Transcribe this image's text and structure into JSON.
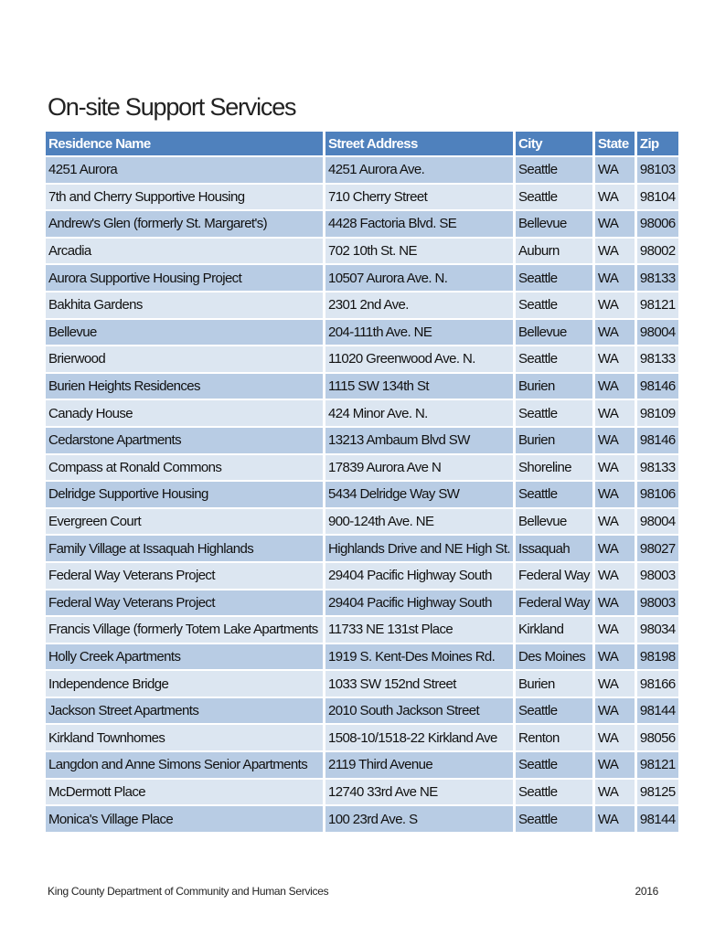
{
  "title": "On-site Support Services",
  "headers": [
    "Residence Name",
    "Street Address",
    "City",
    "State",
    "Zip"
  ],
  "rows": [
    [
      "4251 Aurora",
      "4251 Aurora Ave.",
      "Seattle",
      "WA",
      "98103"
    ],
    [
      "7th and Cherry Supportive Housing",
      "710 Cherry Street",
      "Seattle",
      "WA",
      "98104"
    ],
    [
      "Andrew's Glen (formerly St. Margaret's)",
      "4428 Factoria Blvd. SE",
      "Bellevue",
      "WA",
      "98006"
    ],
    [
      "Arcadia",
      "702 10th St. NE",
      "Auburn",
      "WA",
      "98002"
    ],
    [
      "Aurora Supportive Housing Project",
      "10507 Aurora Ave. N.",
      "Seattle",
      "WA",
      "98133"
    ],
    [
      "Bakhita Gardens",
      "2301 2nd Ave.",
      "Seattle",
      "WA",
      "98121"
    ],
    [
      "Bellevue",
      "204-111th Ave. NE",
      "Bellevue",
      "WA",
      "98004"
    ],
    [
      "Brierwood",
      "11020 Greenwood Ave. N.",
      "Seattle",
      "WA",
      "98133"
    ],
    [
      "Burien Heights Residences",
      "1115 SW 134th St",
      "Burien",
      "WA",
      "98146"
    ],
    [
      "Canady House",
      "424 Minor Ave. N.",
      "Seattle",
      "WA",
      "98109"
    ],
    [
      "Cedarstone Apartments",
      "13213 Ambaum Blvd SW",
      "Burien",
      "WA",
      "98146"
    ],
    [
      "Compass at Ronald Commons",
      "17839 Aurora Ave N",
      "Shoreline",
      "WA",
      "98133"
    ],
    [
      "Delridge Supportive Housing",
      "5434 Delridge Way SW",
      "Seattle",
      "WA",
      "98106"
    ],
    [
      "Evergreen Court",
      "900-124th Ave. NE",
      "Bellevue",
      "WA",
      "98004"
    ],
    [
      "Family Village at Issaquah Highlands",
      "Highlands Drive and NE High St.",
      "Issaquah",
      "WA",
      "98027"
    ],
    [
      "Federal Way Veterans Project",
      "29404 Pacific Highway South",
      "Federal Way",
      "WA",
      "98003"
    ],
    [
      "Federal Way Veterans Project",
      "29404 Pacific Highway South",
      "Federal Way",
      "WA",
      "98003"
    ],
    [
      "Francis Village (formerly Totem Lake Apartments",
      "11733 NE 131st Place",
      "Kirkland",
      "WA",
      "98034"
    ],
    [
      "Holly Creek Apartments",
      "1919 S. Kent-Des Moines Rd.",
      "Des Moines",
      "WA",
      "98198"
    ],
    [
      "Independence Bridge",
      "1033 SW 152nd Street",
      "Burien",
      "WA",
      "98166"
    ],
    [
      "Jackson Street Apartments",
      "2010 South Jackson Street",
      "Seattle",
      "WA",
      "98144"
    ],
    [
      "Kirkland Townhomes",
      "1508-10/1518-22 Kirkland Ave",
      "Renton",
      "WA",
      "98056"
    ],
    [
      "Langdon and Anne Simons Senior Apartments",
      "2119 Third Avenue",
      "Seattle",
      "WA",
      "98121"
    ],
    [
      "McDermott Place",
      "12740 33rd Ave NE",
      "Seattle",
      "WA",
      "98125"
    ],
    [
      "Monica's Village Place",
      "100 23rd Ave. S",
      "Seattle",
      "WA",
      "98144"
    ]
  ],
  "footer": {
    "left": "King County Department of Community and Human Services",
    "right": "2016"
  }
}
